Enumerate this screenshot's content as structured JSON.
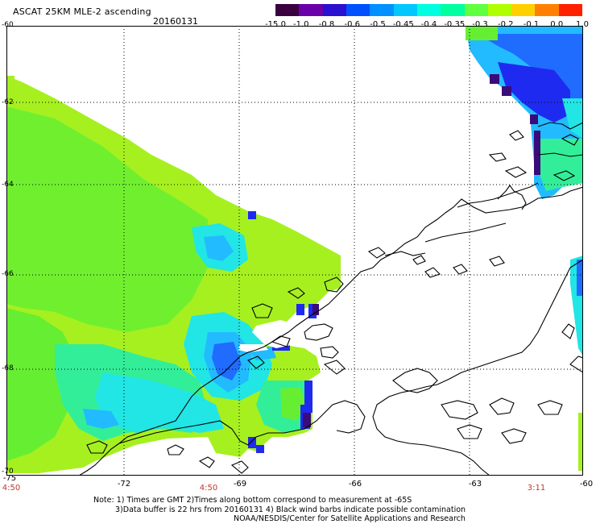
{
  "header": {
    "title": "ASCAT 25KM MLE-2 ascending",
    "date": "20160131"
  },
  "colorbar": {
    "labels": [
      "-15.0",
      "-1.0",
      "-0.8",
      "-0.6",
      "-0.5",
      "-0.45",
      "-0.4",
      "-0.35",
      "-0.3",
      "-0.2",
      "-0.1",
      "0.0",
      "1.0"
    ],
    "colors": [
      "#3a0040",
      "#6a00a8",
      "#2a10d0",
      "#0050ff",
      "#0090ff",
      "#00c8ff",
      "#00ffe0",
      "#00ffa0",
      "#60ff40",
      "#b0ff00",
      "#ffd000",
      "#ff8000",
      "#ff2000"
    ]
  },
  "map": {
    "lat_labels": [
      "-60",
      "-62",
      "-64",
      "-66",
      "-68",
      "-70"
    ],
    "lon_labels": [
      "-75",
      "-72",
      "-69",
      "-66",
      "-63",
      "-60"
    ],
    "time_labels": [
      "4:50",
      "4:50",
      "3:11"
    ],
    "colors": {
      "lime": "#a6f020",
      "green": "#66ee33",
      "aqua_green": "#33ee99",
      "cyan": "#22e5e5",
      "light_blue": "#22bbff",
      "blue": "#1f6cff",
      "deep_blue": "#1f2af0",
      "purple": "#3a0b7a",
      "coast": "#000000",
      "grid": "#000000"
    }
  },
  "notes": {
    "line1": "Note: 1) Times are GMT 2)Times along bottom correspond to measurement at -65S",
    "line2": "3)Data buffer is 22 hrs from 20160131 4) Black wind barbs indicate possible contamination",
    "line3": "NOAA/NESDIS/Center for Satellite Applications and Research"
  }
}
